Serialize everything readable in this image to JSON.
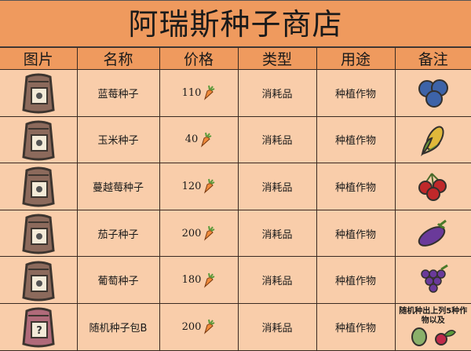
{
  "title": "阿瑞斯种子商店",
  "headers": [
    "图片",
    "名称",
    "价格",
    "类型",
    "用途",
    "备注"
  ],
  "rows": [
    {
      "name": "蓝莓种子",
      "price": "110",
      "type": "消耗品",
      "use": "种植作物",
      "icon": "blueberry-icon",
      "bag": "#8c6a5c"
    },
    {
      "name": "玉米种子",
      "price": "40",
      "type": "消耗品",
      "use": "种植作物",
      "icon": "corn-icon",
      "bag": "#8c6a5c"
    },
    {
      "name": "蔓越莓种子",
      "price": "120",
      "type": "消耗品",
      "use": "种植作物",
      "icon": "cranberry-icon",
      "bag": "#8c6a5c"
    },
    {
      "name": "茄子种子",
      "price": "200",
      "type": "消耗品",
      "use": "种植作物",
      "icon": "eggplant-icon",
      "bag": "#8c6a5c"
    },
    {
      "name": "葡萄种子",
      "price": "180",
      "type": "消耗品",
      "use": "种植作物",
      "icon": "grape-icon",
      "bag": "#8c6a5c"
    },
    {
      "name": "随机种子包B",
      "price": "200",
      "type": "消耗品",
      "use": "种植作物",
      "icon": "artichoke-radish-icon",
      "bag": "#b06a7a",
      "note": "随机种出上列5种作物以及"
    }
  ],
  "colors": {
    "header": "#ef9a5e",
    "cell": "#f9cdaa",
    "carrot": "#f08a3a"
  }
}
